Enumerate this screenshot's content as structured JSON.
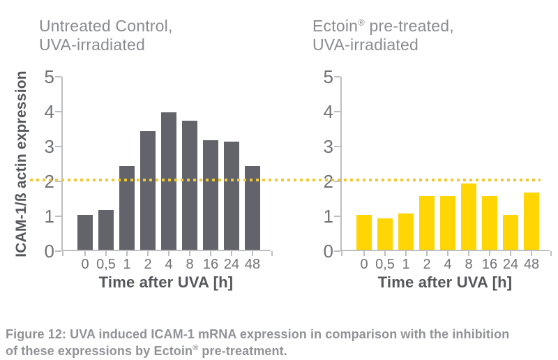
{
  "figure": {
    "caption": {
      "line1": "Figure 12: UVA induced ICAM-1 mRNA expression in comparison with the inhibition",
      "line2_pre": "of these expressions by Ectoin",
      "line2_sup": "®",
      "line2_post": " pre-treatment."
    }
  },
  "charts": [
    {
      "title": {
        "l1_pre": "Untreated Control,",
        "l1_sup": "",
        "l1_post": "",
        "l2": "UVA-irradiated"
      }
    },
    {
      "title": {
        "l1_pre": "Ectoin",
        "l1_sup": "®",
        "l1_post": " pre-treated,",
        "l2": "UVA-irradiated"
      }
    }
  ],
  "chart_data": [
    {
      "type": "bar",
      "title": "Untreated Control, UVA-irradiated",
      "categories": [
        "0",
        "0,5",
        "1",
        "2",
        "4",
        "8",
        "16",
        "24",
        "48"
      ],
      "values": [
        1.0,
        1.15,
        2.4,
        3.4,
        3.95,
        3.7,
        3.15,
        3.1,
        2.4
      ],
      "xlabel": "Time after UVA [h]",
      "ylabel": "ICAM-1/ß actin expression",
      "ylim": [
        0,
        5
      ],
      "yticks": [
        0,
        1,
        2,
        3,
        4,
        5
      ],
      "grid": "off",
      "legend": "none",
      "bar_color": "#63646B",
      "reference_line": {
        "value": 2.05,
        "style": "dotted",
        "color": "#EFC832"
      }
    },
    {
      "type": "bar",
      "title": "Ectoin® pre-treated, UVA-irradiated",
      "categories": [
        "0",
        "0,5",
        "1",
        "2",
        "4",
        "8",
        "16",
        "24",
        "48"
      ],
      "values": [
        1.0,
        0.9,
        1.05,
        1.55,
        1.55,
        1.9,
        1.55,
        1.0,
        1.65
      ],
      "xlabel": "Time after UVA [h]",
      "ylabel": "",
      "ylim": [
        0,
        5
      ],
      "yticks": [
        0,
        1,
        2,
        3,
        4,
        5
      ],
      "grid": "off",
      "legend": "none",
      "bar_color": "#FFD504",
      "reference_line": {
        "value": 2.05,
        "style": "dotted",
        "color": "#EFC832"
      }
    }
  ],
  "colors": {
    "background": "#FFFFFF",
    "axis": "#BDBEC0",
    "tick_label_text": "#717276",
    "axis_title_text": "#56575B",
    "chart_title_text": "#8B8C8F",
    "caption_text": "#919297",
    "gray_bar": "#63646B",
    "yellow_bar": "#FFD504",
    "threshold_line": "#EFC832"
  }
}
